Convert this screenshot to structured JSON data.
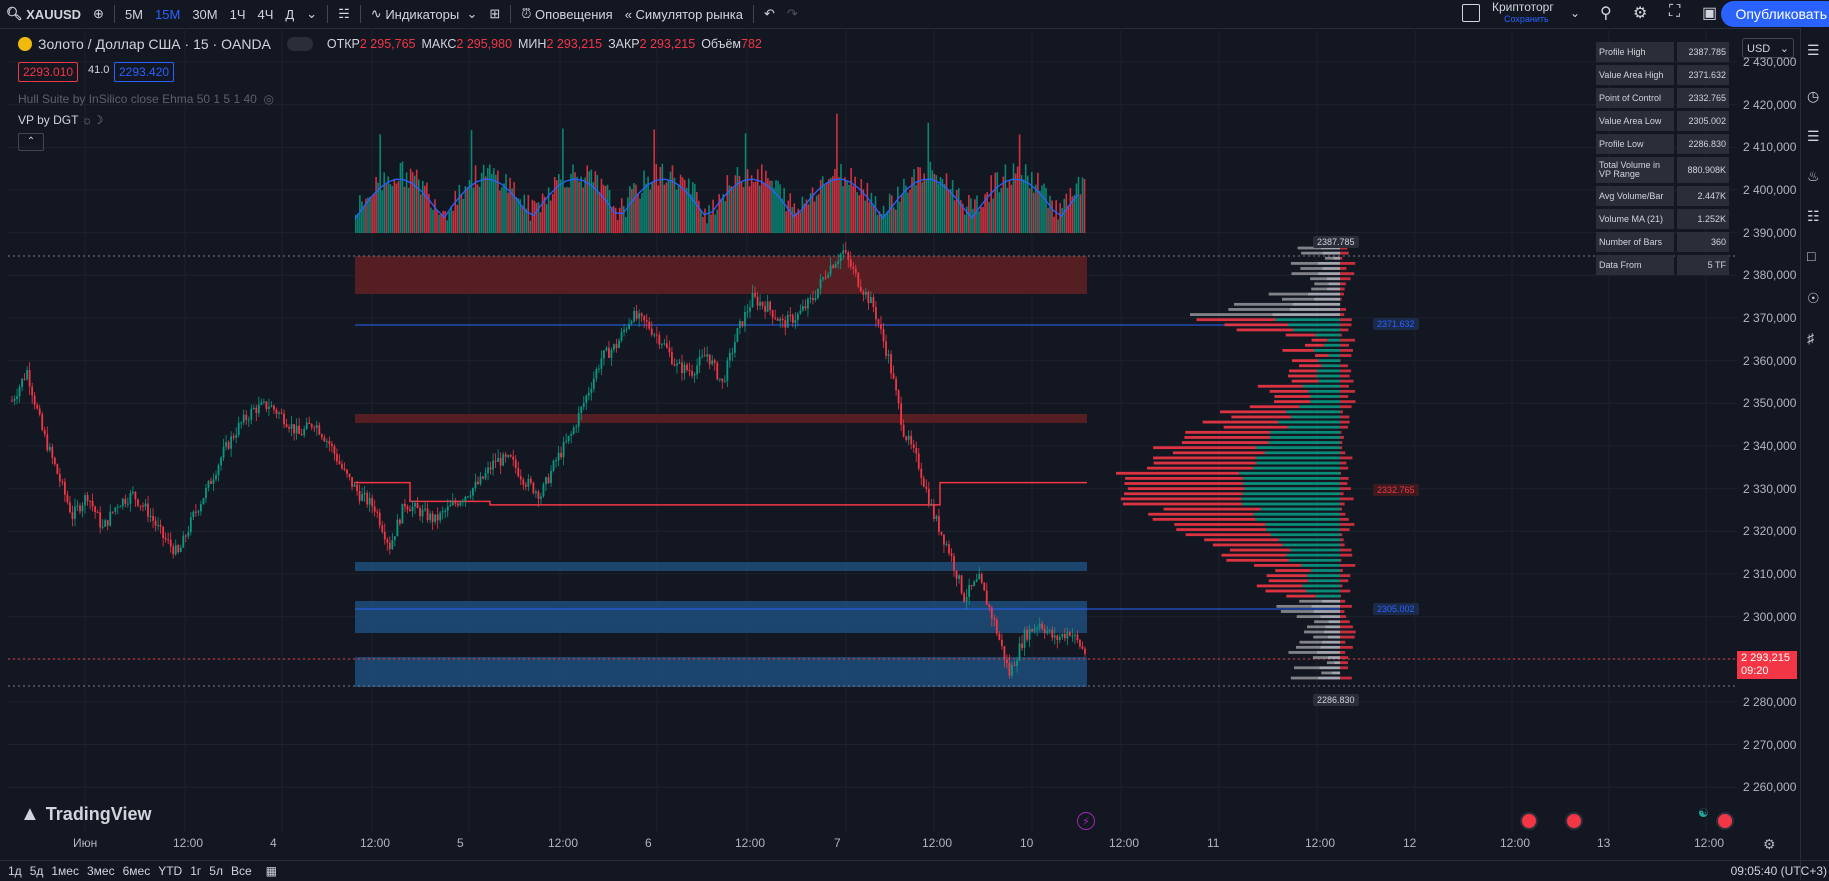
{
  "toolbar": {
    "symbol": "XAUUSD",
    "intervals": [
      "5M",
      "15M",
      "30M",
      "1Ч",
      "4Ч",
      "Д"
    ],
    "active_interval": "15M",
    "indicators_label": "Индикаторы",
    "alerts_label": "Оповещения",
    "replay_label": "Симулятор рынка",
    "layout_name": "Криптоторг",
    "layout_sub": "Сохранить",
    "publish_label": "Опубликовать"
  },
  "legend": {
    "title": "Золото / Доллар США · 15 · OANDA",
    "open_label": "ОТКР",
    "open": "2 295,765",
    "high_label": "МАКС",
    "high": "2 295,980",
    "low_label": "МИН",
    "low": "2 293,215",
    "close_label": "ЗАКР",
    "close": "2 293,215",
    "vol_label": "Объём",
    "vol": "782",
    "bid": "2293.010",
    "spread": "41.0",
    "ask": "2293.420",
    "hull": "Hull Suite by InSilico close Ehma 50 1 5 1 40",
    "vp": "VP by DGT"
  },
  "price_axis": [
    "2 430,000",
    "2 420,000",
    "2 410,000",
    "2 400,000",
    "2 390,000",
    "2 380,000",
    "2 370,000",
    "2 360,000",
    "2 350,000",
    "2 340,000",
    "2 330,000",
    "2 320,000",
    "2 310,000",
    "2 300,000",
    "2 290,000",
    "2 280,000",
    "2 270,000",
    "2 260,000"
  ],
  "current_price": "2 293,215",
  "current_time": "09:20",
  "currency": "USD",
  "time_axis": [
    "Июн",
    "12:00",
    "4",
    "12:00",
    "5",
    "12:00",
    "6",
    "12:00",
    "7",
    "12:00",
    "10",
    "12:00",
    "11",
    "12:00",
    "12",
    "12:00",
    "13",
    "12:00"
  ],
  "stats": [
    {
      "label": "Profile High",
      "value": "2387.785"
    },
    {
      "label": "Value Area High",
      "value": "2371.632"
    },
    {
      "label": "Point of Control",
      "value": "2332.765"
    },
    {
      "label": "Value Area Low",
      "value": "2305.002"
    },
    {
      "label": "Profile Low",
      "value": "2286.830"
    },
    {
      "label": "Total Volume in VP Range",
      "value": "880.908K"
    },
    {
      "label": "Avg Volume/Bar",
      "value": "2.447K"
    },
    {
      "label": "Volume MA (21)",
      "value": "1.252K"
    },
    {
      "label": "Number of Bars",
      "value": "360"
    },
    {
      "label": "Data From",
      "value": "5 TF"
    }
  ],
  "tags": {
    "profile_high": "2387.785",
    "vah": "2371.632",
    "poc": "2332.765",
    "val": "2305.002",
    "profile_low": "2286.830"
  },
  "brand": "TradingView",
  "bottom": {
    "ranges": [
      "1д",
      "5д",
      "1мес",
      "3мес",
      "6мес",
      "YTD",
      "1г",
      "5л",
      "Все"
    ],
    "clock": "09:05:40 (UTC+3)"
  },
  "colors": {
    "bg": "#131722",
    "up": "#089981",
    "down": "#f23645",
    "blue": "#2962ff"
  },
  "price_series": [
    2352,
    2359,
    2345,
    2335,
    2325,
    2330,
    2322,
    2328,
    2330,
    2326,
    2320,
    2316,
    2325,
    2332,
    2340,
    2346,
    2350,
    2351,
    2348,
    2344,
    2347,
    2342,
    2335,
    2330,
    2327,
    2318,
    2328,
    2326,
    2324,
    2327,
    2330,
    2333,
    2338,
    2338,
    2333,
    2330,
    2338,
    2344,
    2353,
    2362,
    2365,
    2372,
    2370,
    2366,
    2360,
    2359,
    2363,
    2356,
    2368,
    2376,
    2374,
    2370,
    2372,
    2376,
    2383,
    2387,
    2380,
    2374,
    2362,
    2345,
    2337,
    2325,
    2317,
    2306,
    2310,
    2300,
    2288,
    2297,
    2300,
    2296,
    2298,
    2293
  ]
}
